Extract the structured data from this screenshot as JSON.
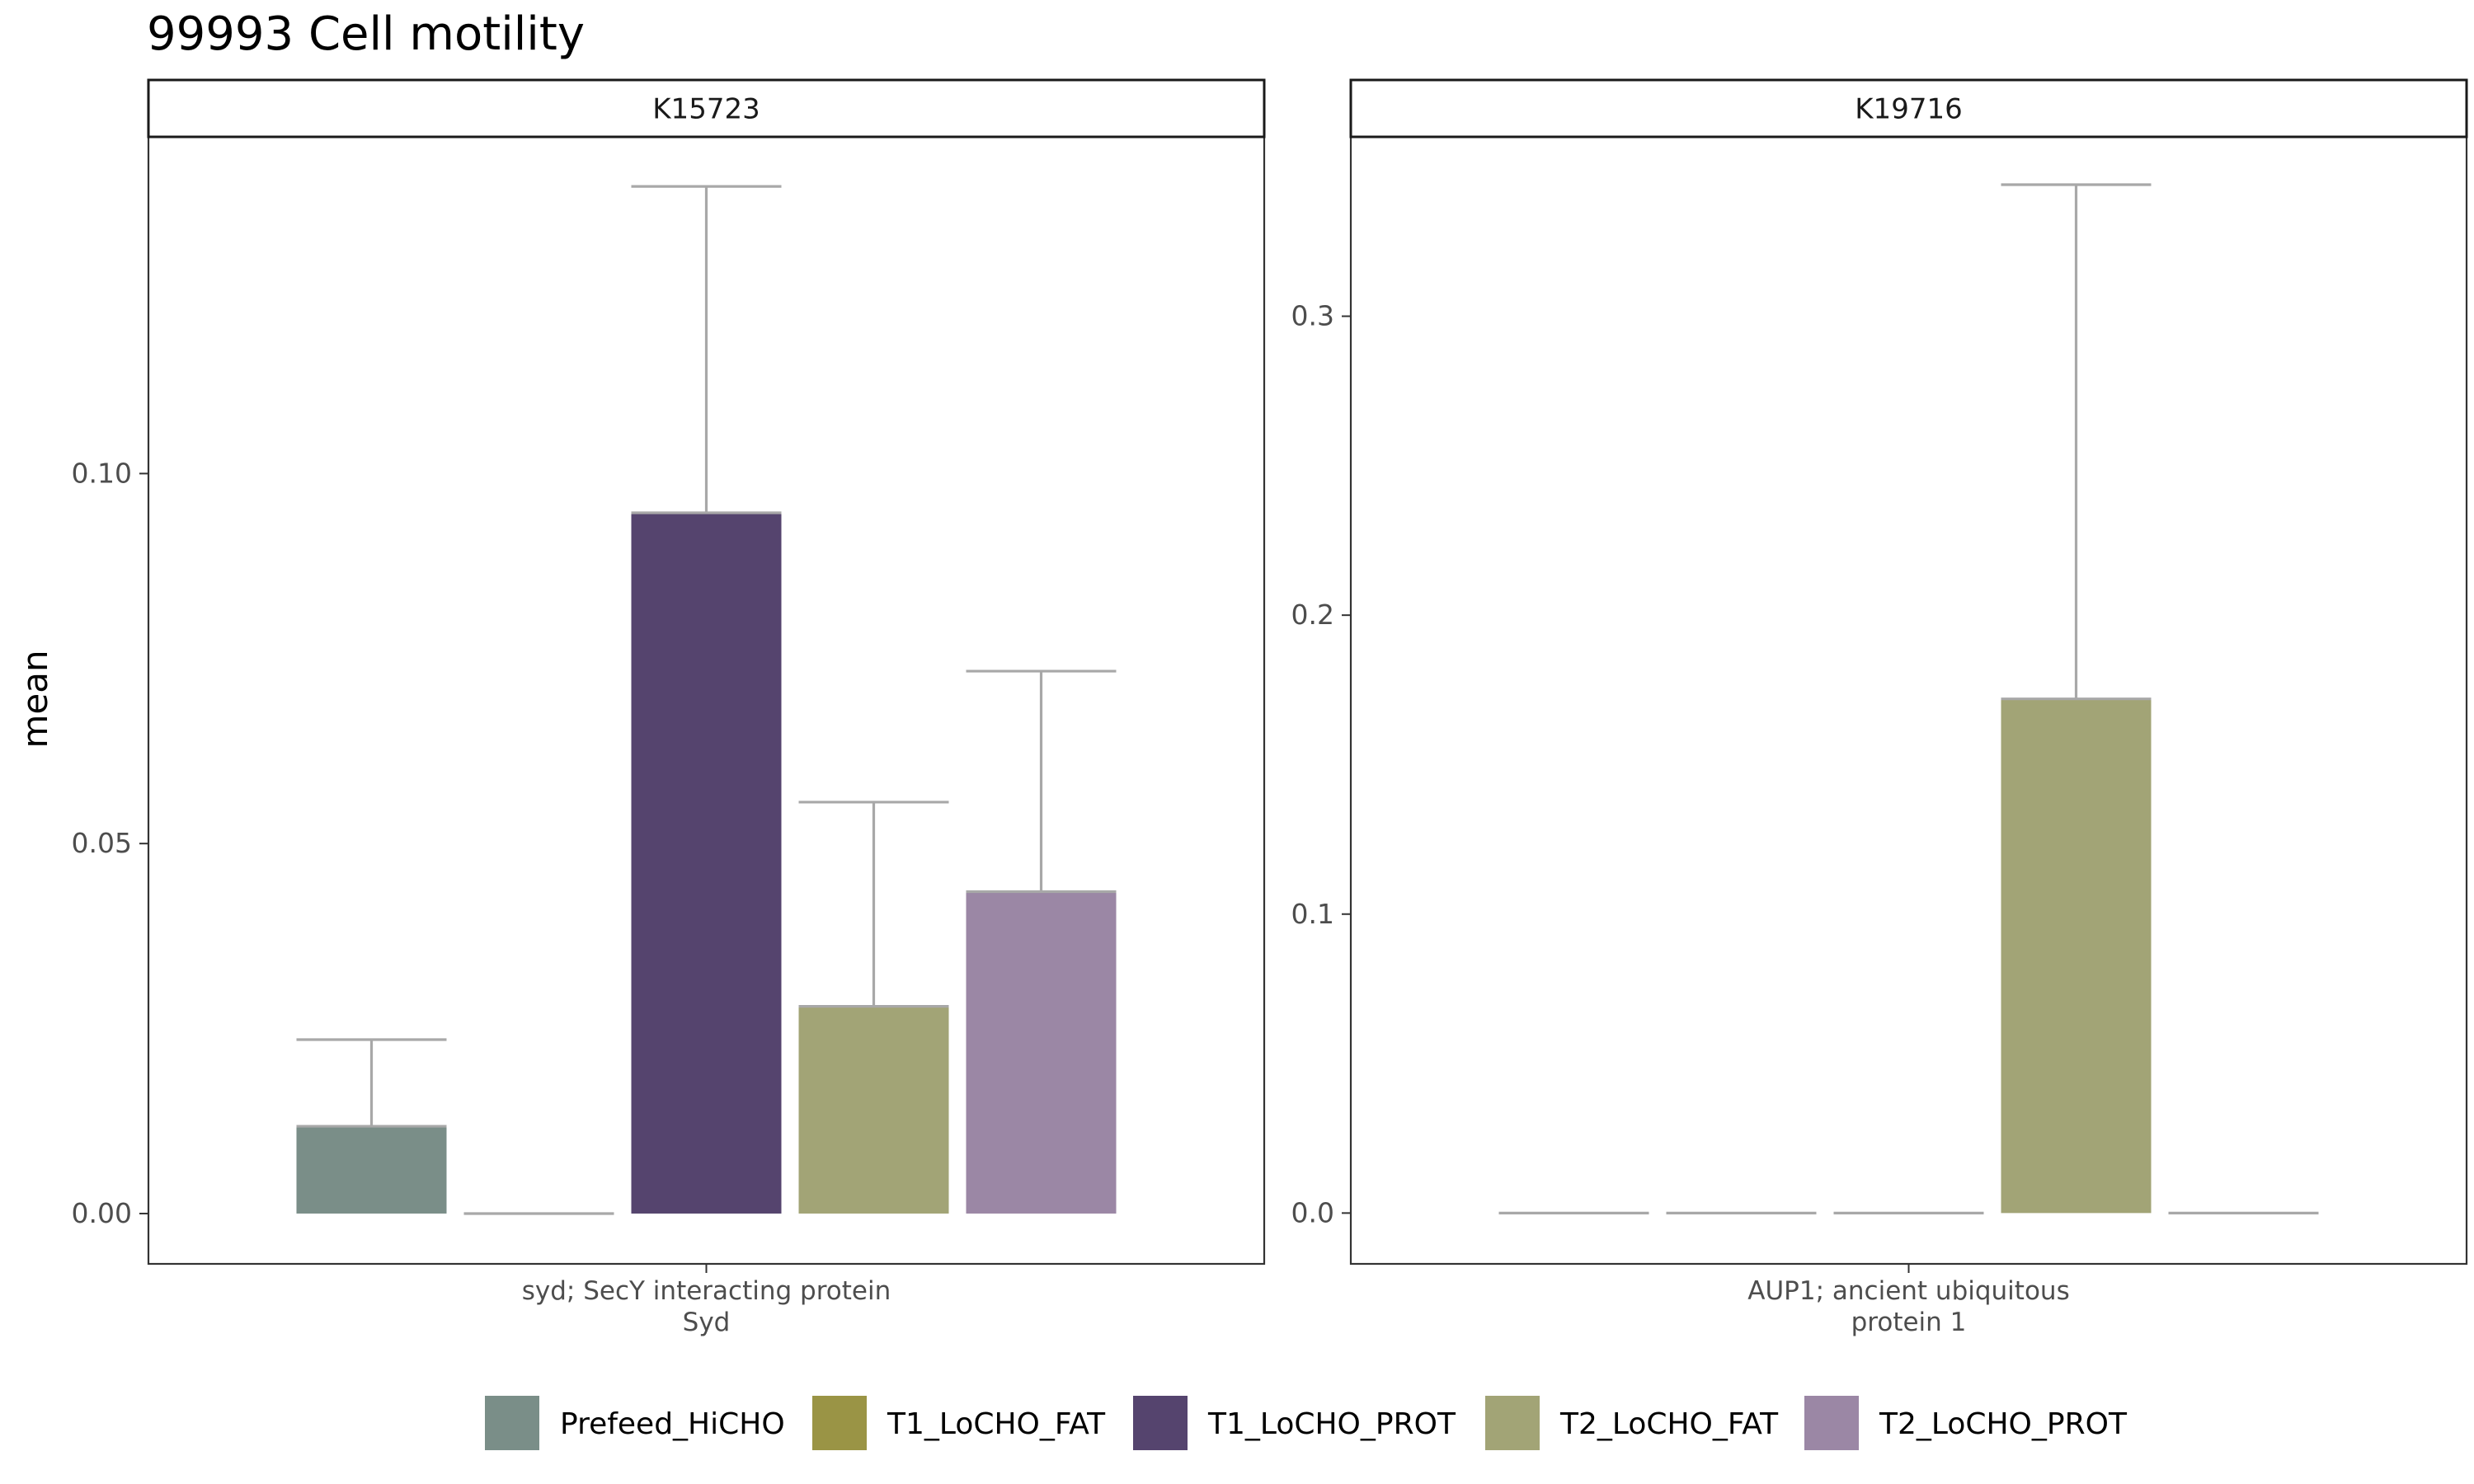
{
  "title": "99993 Cell motility",
  "colors": {
    "Prefeed_HiCHO": "#7a8e88",
    "T1_LoCHO_FAT": "#9a9445",
    "T1_LoCHO_PROT": "#55446e",
    "T2_LoCHO_FAT": "#a2a476",
    "T2_LoCHO_PROT": "#9b87a5",
    "errorbar": "#a8a8a8",
    "panel_border": "#333333"
  },
  "legend": {
    "items": [
      "Prefeed_HiCHO",
      "T1_LoCHO_FAT",
      "T1_LoCHO_PROT",
      "T2_LoCHO_FAT",
      "T2_LoCHO_PROT"
    ]
  },
  "chart_data": {
    "type": "bar",
    "title": "99993 Cell motility",
    "ylabel": "mean",
    "xlabel": "",
    "grid": false,
    "legend_position": "bottom",
    "series_names": [
      "Prefeed_HiCHO",
      "T1_LoCHO_FAT",
      "T1_LoCHO_PROT",
      "T2_LoCHO_FAT",
      "T2_LoCHO_PROT"
    ],
    "panels": [
      {
        "strip": "K15723",
        "category_lines": [
          "syd; SecY interacting protein",
          "Syd"
        ],
        "ylim": [
          -0.0068,
          0.1455
        ],
        "yticks": [
          0.0,
          0.05,
          0.1
        ],
        "ytick_labels": [
          "0.00",
          "0.05",
          "0.10"
        ],
        "values": [
          0.0118,
          0.0,
          0.0947,
          0.028,
          0.0435
        ],
        "error_upper": [
          0.0235,
          0.0,
          0.1388,
          0.0556,
          0.0733
        ]
      },
      {
        "strip": "K19716",
        "category_lines": [
          "AUP1; ancient ubiquitous",
          "protein 1"
        ],
        "ylim": [
          -0.017,
          0.36
        ],
        "yticks": [
          0.0,
          0.1,
          0.2,
          0.3
        ],
        "ytick_labels": [
          "0.0",
          "0.1",
          "0.2",
          "0.3"
        ],
        "values": [
          0.0,
          0.0,
          0.0,
          0.172,
          0.0
        ],
        "error_upper": [
          0.0,
          0.0,
          0.0,
          0.344,
          0.0
        ]
      }
    ]
  }
}
